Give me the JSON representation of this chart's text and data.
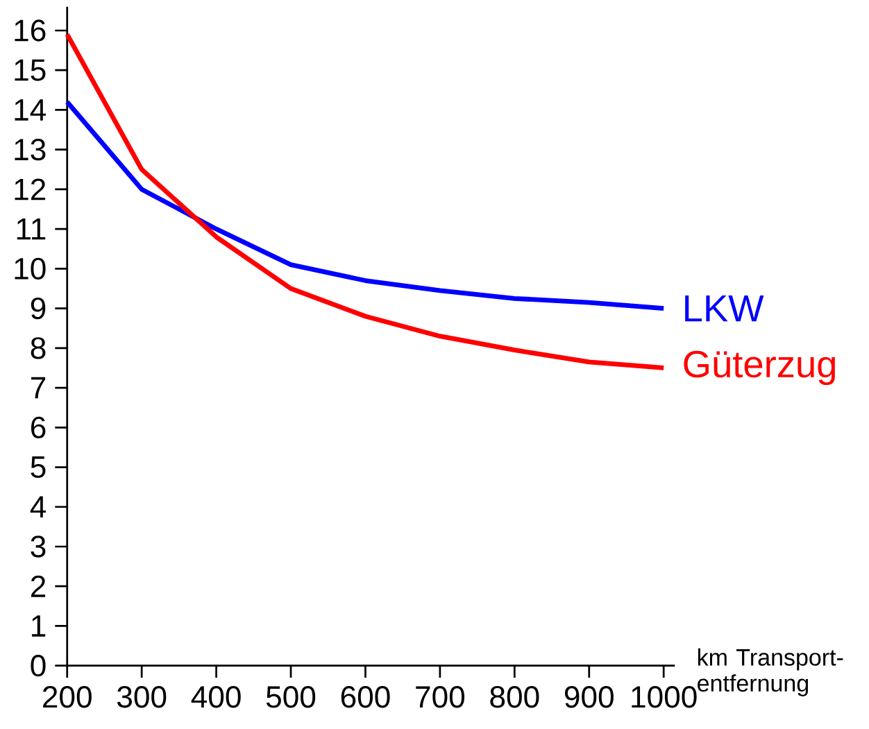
{
  "chart_data": {
    "type": "line",
    "xlabel": "km Transport-entfernung",
    "x": [
      200,
      300,
      400,
      500,
      600,
      700,
      800,
      900,
      1000
    ],
    "series": [
      {
        "name": "LKW",
        "color": "#0000ff",
        "values": [
          14.2,
          12.0,
          11.0,
          10.1,
          9.7,
          9.45,
          9.25,
          9.15,
          9.0
        ]
      },
      {
        "name": "Güterzug",
        "color": "#ff0000",
        "values": [
          15.9,
          12.5,
          10.8,
          9.5,
          8.8,
          8.3,
          7.95,
          7.65,
          7.5
        ]
      }
    ],
    "marker": "none",
    "xlim": [
      200,
      1015
    ],
    "ylim": [
      0,
      16.6
    ],
    "xticks": [
      200,
      300,
      400,
      500,
      600,
      700,
      800,
      900,
      1000
    ],
    "yticks": [
      0,
      1,
      2,
      3,
      4,
      5,
      6,
      7,
      8,
      9,
      10,
      11,
      12,
      13,
      14,
      15,
      16
    ]
  }
}
